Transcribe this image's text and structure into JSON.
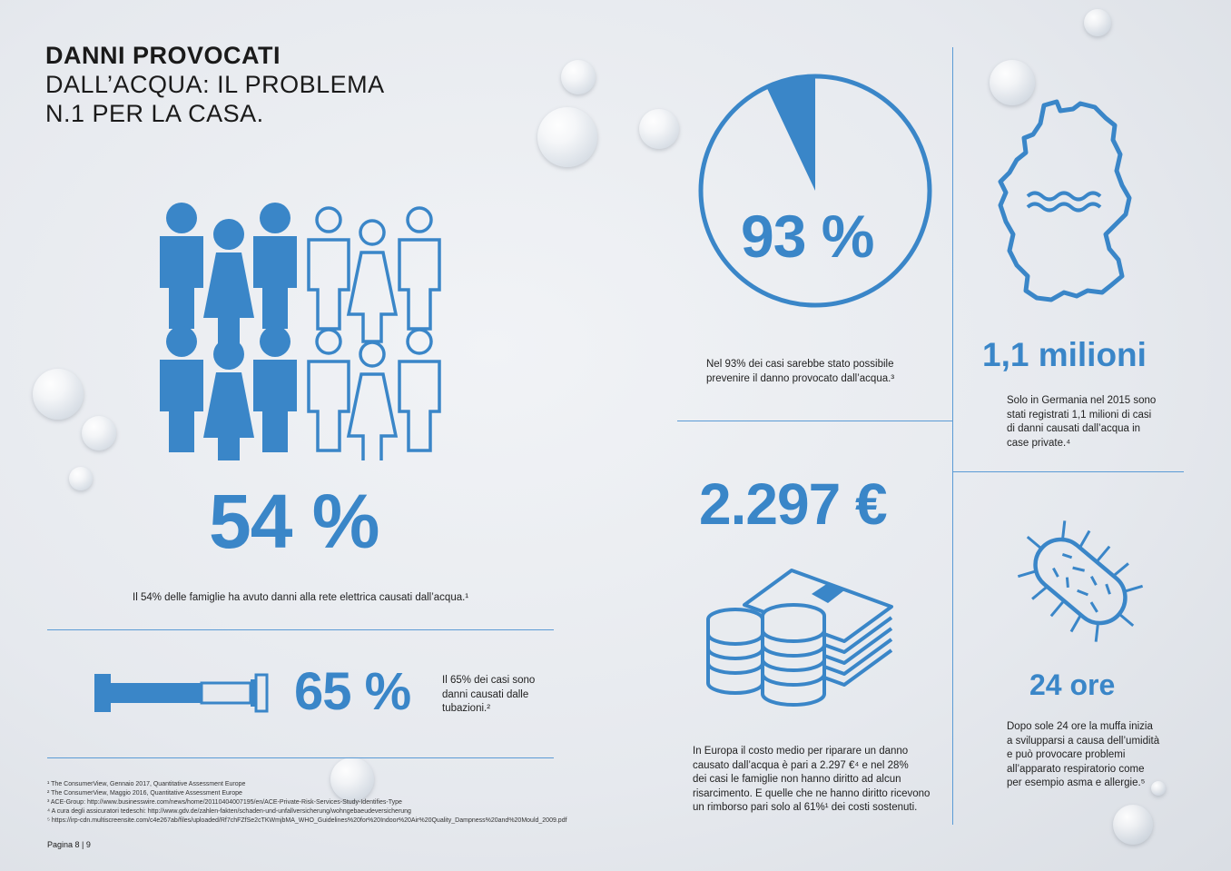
{
  "header": {
    "title_line1": "DANNI PROVOCATI",
    "title_line2": "DALL’ACQUA: IL PROBLEMA",
    "title_line3": "N.1 PER LA CASA."
  },
  "stat_54": {
    "value": "54 %",
    "caption": "Il 54% delle famiglie ha avuto danni alla rete elettrica causati dall’acqua.¹",
    "people_total": 12,
    "people_filled_per_row": 3
  },
  "stat_65": {
    "value": "65 %",
    "caption_line1": "Il 65% dei casi sono",
    "caption_line2": "danni causati dalle",
    "caption_line3": "tubazioni.²",
    "fill_fraction": 0.65
  },
  "stat_93": {
    "value": "93 %",
    "caption_line1": "Nel 93% dei casi sarebbe stato possibile",
    "caption_line2": "prevenire il danno provocato dall’acqua.³",
    "pie_slice_fraction": 0.07
  },
  "stat_germany": {
    "value": "1,1 milioni",
    "caption_line1": "Solo in Germania nel 2015 sono",
    "caption_line2": "stati registrati 1,1 milioni di casi",
    "caption_line3": "di danni causati dall’acqua in",
    "caption_line4": "case private.⁴"
  },
  "stat_cost": {
    "value": "2.297 €",
    "caption_line1": "In Europa il costo medio per riparare un danno",
    "caption_line2": "causato dall’acqua è pari a 2.297 €⁴ e nel 28%",
    "caption_line3": "dei casi le famiglie non hanno diritto ad alcun",
    "caption_line4": "risarcimento. E quelle che ne hanno diritto ricevono",
    "caption_line5": "un rimborso pari solo al 61%¹ dei costi sostenuti."
  },
  "stat_mould": {
    "value": "24 ore",
    "caption_line1": "Dopo sole 24 ore la muffa inizia",
    "caption_line2": "a svilupparsi a causa dell’umidità",
    "caption_line3": "e può provocare problemi",
    "caption_line4": "all’apparato respiratorio come",
    "caption_line5": "per esempio asma e allergie.⁵"
  },
  "footnotes": [
    "¹ The ConsumerView, Gennaio 2017, Quantitative Assessment Europe",
    "² The ConsumerView, Maggio 2016, Quantitative Assessment Europe",
    "³ ACE-Group: http://www.businesswire.com/news/home/20110404007195/en/ACE-Private-Risk-Services-Study-Identifies-Type",
    "⁴ A cura degli assicuratori tedeschi: http://www.gdv.de/zahlen-fakten/schaden-und-unfallversicherung/wohngebaeudeversicherung",
    "⁵ https://irp-cdn.multiscreensite.com/c4e267ab/files/uploaded/Rf7chFZfSe2cTKWmjbMA_WHO_Guidelines%20for%20Indoor%20Air%20Quality_Dampness%20and%20Mould_2009.pdf"
  ],
  "page_label": "Pagina 8 | 9",
  "colors": {
    "accent": "#3a86c8",
    "line": "#5b9bd5"
  },
  "icons": [
    "people-icon",
    "pipe-icon",
    "pie-icon",
    "germany-map-icon",
    "coins-bills-icon",
    "mould-bacteria-icon"
  ]
}
